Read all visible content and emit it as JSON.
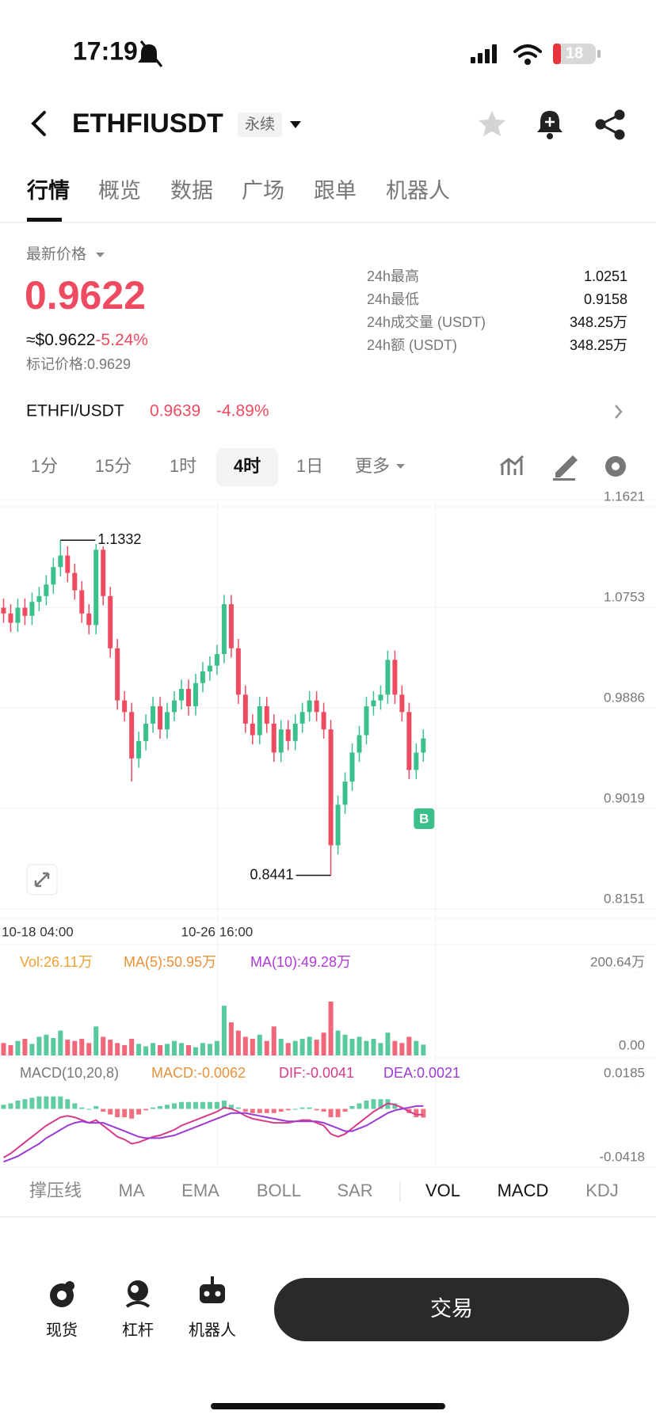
{
  "status": {
    "time": "17:19",
    "battery": "18"
  },
  "header": {
    "symbol": "ETHFIUSDT",
    "tag": "永续"
  },
  "tabs": [
    "行情",
    "概览",
    "数据",
    "广场",
    "跟单",
    "机器人"
  ],
  "price": {
    "label": "最新价格",
    "last": 0.9622,
    "usd": "≈$0.9622",
    "change": "-5.24%",
    "mark_price": "标记价格:0.9629"
  },
  "stats": [
    {
      "label": "24h最高",
      "value": 1.0251
    },
    {
      "label": "24h最低",
      "value": 0.9158
    },
    {
      "label": "24h成交量 (USDT)",
      "value": "348.25万"
    },
    {
      "label": "24h额 (USDT)",
      "value": "348.25万"
    }
  ],
  "spot": {
    "pair": "ETHFI/USDT",
    "price": 0.9639,
    "change": "-4.89%"
  },
  "timeframes": [
    "1分",
    "15分",
    "1时",
    "4时",
    "1日",
    "更多"
  ],
  "chart_data": {
    "type": "candlestick",
    "categories": [
      "10-18 04:00",
      null,
      null,
      null,
      null,
      null,
      null,
      null,
      null,
      null,
      null,
      null,
      null,
      null,
      null,
      null,
      null,
      null,
      null,
      null,
      null,
      null,
      null,
      null,
      null,
      null,
      null,
      null,
      null,
      null,
      "10-26 16:00",
      null,
      null,
      null,
      null,
      null,
      null,
      null,
      null,
      null,
      null,
      null,
      null,
      null,
      null,
      null,
      null,
      null,
      null,
      null,
      null,
      null,
      null,
      null,
      null,
      null,
      null,
      null,
      null,
      null
    ],
    "candles": [
      [
        1.075,
        1.083,
        1.062,
        1.07
      ],
      [
        1.07,
        1.078,
        1.054,
        1.062
      ],
      [
        1.062,
        1.083,
        1.054,
        1.075
      ],
      [
        1.075,
        1.083,
        1.06,
        1.068
      ],
      [
        1.068,
        1.088,
        1.06,
        1.08
      ],
      [
        1.08,
        1.093,
        1.072,
        1.085
      ],
      [
        1.085,
        1.103,
        1.077,
        1.095
      ],
      [
        1.095,
        1.118,
        1.087,
        1.11
      ],
      [
        1.11,
        1.1332,
        1.102,
        1.12
      ],
      [
        1.12,
        1.128,
        1.097,
        1.105
      ],
      [
        1.105,
        1.113,
        1.082,
        1.09
      ],
      [
        1.09,
        1.098,
        1.062,
        1.07
      ],
      [
        1.07,
        1.078,
        1.052,
        1.06
      ],
      [
        1.06,
        1.13,
        1.052,
        1.125
      ],
      [
        1.125,
        1.128,
        1.077,
        1.085
      ],
      [
        1.085,
        1.093,
        1.032,
        1.04
      ],
      [
        1.04,
        1.048,
        0.987,
        0.995
      ],
      [
        0.995,
        1.003,
        0.977,
        0.985
      ],
      [
        0.985,
        0.993,
        0.925,
        0.945
      ],
      [
        0.945,
        0.968,
        0.937,
        0.96
      ],
      [
        0.96,
        0.983,
        0.952,
        0.975
      ],
      [
        0.975,
        0.998,
        0.967,
        0.99
      ],
      [
        0.99,
        0.998,
        0.962,
        0.97
      ],
      [
        0.97,
        0.993,
        0.962,
        0.985
      ],
      [
        0.985,
        1.003,
        0.977,
        0.995
      ],
      [
        0.995,
        1.013,
        0.987,
        1.005
      ],
      [
        1.005,
        1.013,
        0.982,
        0.99
      ],
      [
        0.99,
        1.018,
        0.982,
        1.01
      ],
      [
        1.01,
        1.028,
        1.002,
        1.02
      ],
      [
        1.02,
        1.033,
        1.012,
        1.025
      ],
      [
        1.025,
        1.043,
        1.017,
        1.035
      ],
      [
        1.035,
        1.086,
        1.027,
        1.078
      ],
      [
        1.078,
        1.086,
        1.032,
        1.04
      ],
      [
        1.04,
        1.048,
        0.992,
        1.0
      ],
      [
        1.0,
        1.008,
        0.967,
        0.975
      ],
      [
        0.975,
        0.983,
        0.957,
        0.965
      ],
      [
        0.965,
        0.998,
        0.957,
        0.99
      ],
      [
        0.99,
        0.998,
        0.967,
        0.975
      ],
      [
        0.975,
        0.983,
        0.942,
        0.95
      ],
      [
        0.95,
        0.978,
        0.942,
        0.97
      ],
      [
        0.97,
        0.978,
        0.952,
        0.96
      ],
      [
        0.96,
        0.983,
        0.952,
        0.975
      ],
      [
        0.975,
        0.993,
        0.967,
        0.985
      ],
      [
        0.985,
        1.003,
        0.977,
        0.995
      ],
      [
        0.995,
        1.003,
        0.977,
        0.985
      ],
      [
        0.985,
        0.993,
        0.962,
        0.97
      ],
      [
        0.97,
        0.978,
        0.8441,
        0.87
      ],
      [
        0.87,
        0.913,
        0.862,
        0.905
      ],
      [
        0.905,
        0.933,
        0.897,
        0.925
      ],
      [
        0.925,
        0.958,
        0.917,
        0.95
      ],
      [
        0.95,
        0.973,
        0.942,
        0.965
      ],
      [
        0.965,
        0.998,
        0.957,
        0.99
      ],
      [
        0.99,
        1.003,
        0.982,
        0.995
      ],
      [
        0.995,
        1.008,
        0.987,
        1.0
      ],
      [
        1.0,
        1.038,
        0.992,
        1.03
      ],
      [
        1.03,
        1.038,
        0.992,
        1.0
      ],
      [
        1.0,
        1.008,
        0.977,
        0.985
      ],
      [
        0.985,
        0.993,
        0.927,
        0.935
      ],
      [
        0.935,
        0.958,
        0.927,
        0.95
      ],
      [
        0.95,
        0.97,
        0.942,
        0.9622
      ]
    ],
    "up_color": "#3bc08c",
    "down_color": "#ef4b60",
    "ylim": [
      0.8151,
      1.1621
    ],
    "yticks": [
      1.1621,
      1.0753,
      0.9886,
      0.9019,
      0.8151
    ],
    "max_label": 1.1332,
    "min_label": 0.8441,
    "marker": "B",
    "volume": {
      "labels": [
        "Vol:26.11万",
        "MA(5):50.95万",
        "MA(10):49.28万"
      ],
      "values": [
        30,
        25,
        35,
        40,
        28,
        45,
        50,
        42,
        60,
        38,
        35,
        40,
        30,
        70,
        45,
        38,
        30,
        25,
        40,
        28,
        22,
        30,
        25,
        28,
        35,
        30,
        25,
        20,
        30,
        28,
        35,
        120,
        80,
        60,
        45,
        40,
        50,
        35,
        70,
        40,
        30,
        35,
        40,
        45,
        38,
        55,
        130,
        60,
        50,
        40,
        45,
        35,
        40,
        30,
        55,
        35,
        30,
        45,
        35,
        26.11
      ],
      "ylim": [
        0,
        200.64
      ],
      "yticks": [
        {
          "value": 200.64,
          "label": "200.64万"
        },
        {
          "value": 0,
          "label": "0.00"
        }
      ]
    },
    "macd": {
      "labels": [
        "MACD(10,20,8)",
        "MACD:-0.0062",
        "DIF:-0.0041",
        "DEA:0.0021"
      ],
      "hist": [
        0.003,
        0.004,
        0.006,
        0.007,
        0.008,
        0.009,
        0.009,
        0.009,
        0.009,
        0.007,
        0.004,
        0.001,
        0.0,
        0.002,
        -0.002,
        -0.004,
        -0.006,
        -0.006,
        -0.007,
        -0.004,
        -0.001,
        0.001,
        0.002,
        0.003,
        0.004,
        0.005,
        0.005,
        0.005,
        0.005,
        0.005,
        0.005,
        0.006,
        0.003,
        0.001,
        -0.002,
        -0.003,
        -0.003,
        -0.003,
        -0.003,
        -0.002,
        -0.001,
        0.0,
        0.001,
        0.001,
        -0.001,
        -0.002,
        -0.006,
        -0.006,
        -0.002,
        0.002,
        0.004,
        0.006,
        0.007,
        0.007,
        0.007,
        0.004,
        0.001,
        -0.003,
        -0.006,
        -0.0062
      ],
      "dif": [
        -0.035,
        -0.032,
        -0.028,
        -0.024,
        -0.02,
        -0.016,
        -0.012,
        -0.009,
        -0.006,
        -0.005,
        -0.006,
        -0.008,
        -0.01,
        -0.008,
        -0.012,
        -0.016,
        -0.02,
        -0.022,
        -0.025,
        -0.024,
        -0.022,
        -0.02,
        -0.019,
        -0.017,
        -0.015,
        -0.012,
        -0.01,
        -0.008,
        -0.006,
        -0.004,
        -0.002,
        0.001,
        0.0,
        -0.002,
        -0.005,
        -0.007,
        -0.008,
        -0.009,
        -0.01,
        -0.01,
        -0.01,
        -0.009,
        -0.008,
        -0.008,
        -0.01,
        -0.012,
        -0.018,
        -0.02,
        -0.018,
        -0.014,
        -0.01,
        -0.006,
        -0.002,
        0.001,
        0.004,
        0.003,
        0.001,
        -0.002,
        -0.004,
        -0.0041
      ],
      "dea": [
        -0.038,
        -0.036,
        -0.034,
        -0.031,
        -0.028,
        -0.025,
        -0.021,
        -0.018,
        -0.015,
        -0.012,
        -0.01,
        -0.009,
        -0.01,
        -0.01,
        -0.01,
        -0.012,
        -0.014,
        -0.016,
        -0.018,
        -0.02,
        -0.021,
        -0.021,
        -0.021,
        -0.02,
        -0.019,
        -0.017,
        -0.015,
        -0.013,
        -0.011,
        -0.009,
        -0.007,
        -0.005,
        -0.003,
        -0.003,
        -0.003,
        -0.004,
        -0.005,
        -0.006,
        -0.007,
        -0.008,
        -0.009,
        -0.009,
        -0.009,
        -0.009,
        -0.009,
        -0.01,
        -0.012,
        -0.014,
        -0.016,
        -0.016,
        -0.014,
        -0.012,
        -0.009,
        -0.006,
        -0.003,
        -0.001,
        0.0,
        0.001,
        0.002,
        0.0021
      ],
      "ylim": [
        -0.0418,
        0.0185
      ],
      "yticks": [
        0.0185,
        -0.0418
      ]
    }
  },
  "indicators": [
    "撑压线",
    "MA",
    "EMA",
    "BOLL",
    "SAR",
    "VOL",
    "MACD",
    "KDJ"
  ],
  "bottom_nav": [
    "现货",
    "杠杆",
    "机器人"
  ],
  "trade_button": "交易"
}
